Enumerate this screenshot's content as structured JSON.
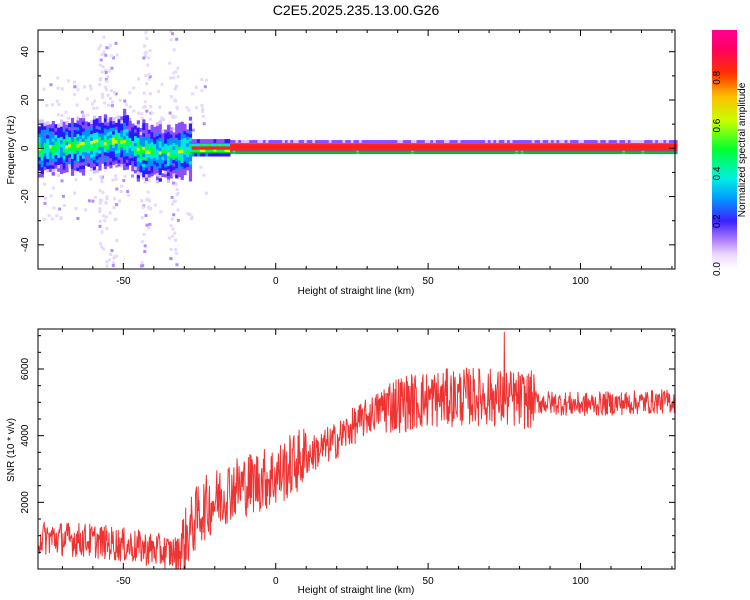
{
  "figure": {
    "title": "C2E5.2025.235.13.00.G26"
  },
  "chart_data": [
    {
      "type": "heatmap",
      "title": "C2E5.2025.235.13.00.G26",
      "xlabel": "Height of straight line (km)",
      "ylabel": "Frequency (Hz)",
      "xlim": [
        -78,
        131
      ],
      "ylim": [
        -50,
        49
      ],
      "xticks": [
        -50,
        0,
        50,
        100
      ],
      "yticks": [
        -40,
        -20,
        0,
        20,
        40
      ],
      "grid": false,
      "colorbar": {
        "label": "Normalized spectral amplitude",
        "range": [
          0.0,
          1.0
        ],
        "ticks": [
          0.0,
          0.2,
          0.4,
          0.6,
          0.8
        ],
        "tick_labels": [
          "0.0",
          "0.2",
          "0.4",
          "0.6",
          "0.8"
        ],
        "colormap": "rainbow (white-lavender-purple-blue-cyan-green-yellow-orange-red-magenta)"
      },
      "ridge_center_hz": [
        {
          "x": -78,
          "y": 0
        },
        {
          "x": -50,
          "y": 3
        },
        {
          "x": -45,
          "y": -1
        },
        {
          "x": -35,
          "y": -2
        },
        {
          "x": -28,
          "y": 0
        },
        {
          "x": 131,
          "y": 0
        }
      ]
    },
    {
      "type": "line",
      "xlabel": "Height of straight line (km)",
      "ylabel": "SNR (10 * v/v)",
      "xlim": [
        -78,
        131
      ],
      "ylim": [
        0,
        7200
      ],
      "xticks": [
        -50,
        0,
        50,
        100
      ],
      "yticks": [
        2000,
        4000,
        6000
      ],
      "grid": false,
      "color": "#ee3333",
      "trend": [
        {
          "x": -78,
          "y": 900
        },
        {
          "x": -60,
          "y": 800
        },
        {
          "x": -45,
          "y": 600
        },
        {
          "x": -32,
          "y": 400
        },
        {
          "x": -25,
          "y": 1600
        },
        {
          "x": -15,
          "y": 2300
        },
        {
          "x": 0,
          "y": 2700
        },
        {
          "x": 10,
          "y": 3300
        },
        {
          "x": 20,
          "y": 3800
        },
        {
          "x": 25,
          "y": 4200
        },
        {
          "x": 35,
          "y": 4800
        },
        {
          "x": 50,
          "y": 5000
        },
        {
          "x": 65,
          "y": 5100
        },
        {
          "x": 80,
          "y": 5000
        },
        {
          "x": 100,
          "y": 4900
        },
        {
          "x": 131,
          "y": 5000
        }
      ],
      "peak": {
        "x": 75,
        "y": 7100
      }
    }
  ]
}
